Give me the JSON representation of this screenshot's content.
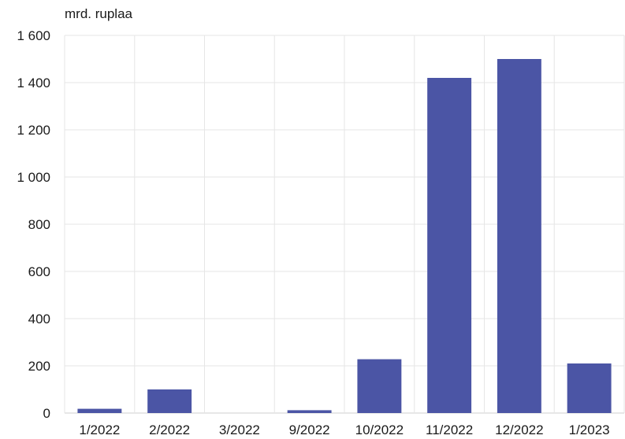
{
  "chart_data": {
    "type": "bar",
    "ylabel": "mrd. ruplaa",
    "categories": [
      "1/2022",
      "2/2022",
      "3/2022",
      "9/2022",
      "10/2022",
      "11/2022",
      "12/2022",
      "1/2023"
    ],
    "values": [
      18,
      100,
      0,
      12,
      228,
      1420,
      1500,
      210
    ],
    "ylim": [
      0,
      1600
    ],
    "yticks": [
      0,
      200,
      400,
      600,
      800,
      1000,
      1200,
      1400,
      1600
    ],
    "ytick_labels": [
      "0",
      "200",
      "400",
      "600",
      "800",
      "1 000",
      "1 200",
      "1 400",
      "1 600"
    ],
    "bar_color": "#4b55a5",
    "grid": true
  }
}
